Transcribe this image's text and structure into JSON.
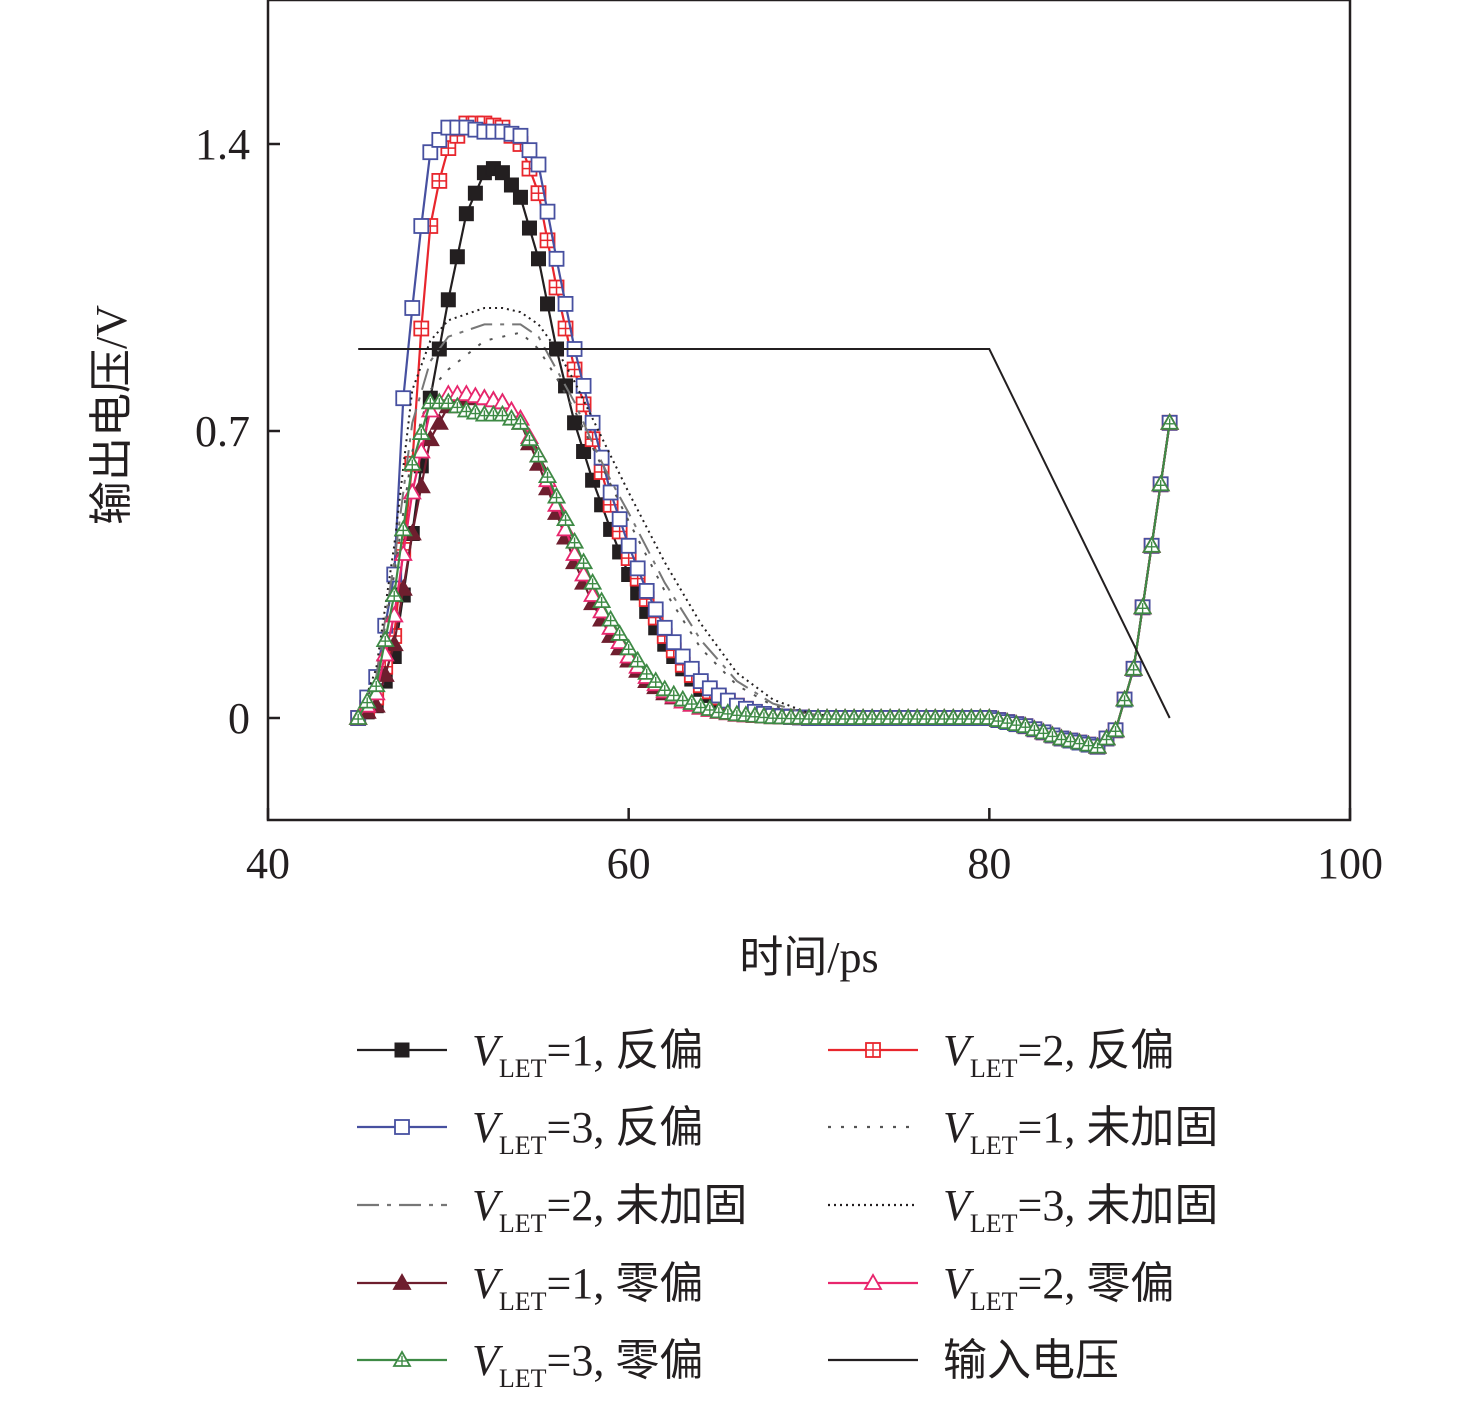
{
  "chart_data": {
    "type": "line",
    "xlabel": "时间/ps",
    "ylabel": "输出电压/V",
    "xlim": [
      40,
      100
    ],
    "ylim": [
      -0.25,
      1.75
    ],
    "xticks": [
      40,
      60,
      80,
      100
    ],
    "yticks": [
      0,
      0.7,
      1.4
    ],
    "xtick_labels": [
      "40",
      "60",
      "80",
      "100"
    ],
    "ytick_labels": [
      "0",
      "0.7",
      "1.4"
    ],
    "grid": false,
    "legend_position": "bottom",
    "series": [
      {
        "label_var": "V",
        "label_sub": "LET",
        "label_rest": "=1, 反偏",
        "color": "#231f20",
        "marker": "square-filled",
        "dash": "",
        "x": [
          45,
          46,
          47,
          48,
          49,
          50,
          51,
          52,
          52.5,
          53,
          54,
          55,
          56,
          57,
          58,
          59,
          60,
          61,
          62,
          63,
          64,
          65,
          66,
          67,
          68,
          70,
          75,
          80,
          82,
          84,
          86,
          87,
          88,
          89,
          90
        ],
        "y": [
          0,
          0.03,
          0.15,
          0.45,
          0.78,
          1.02,
          1.23,
          1.33,
          1.34,
          1.33,
          1.27,
          1.12,
          0.9,
          0.72,
          0.58,
          0.46,
          0.35,
          0.26,
          0.18,
          0.12,
          0.07,
          0.04,
          0.02,
          0.01,
          0.005,
          0,
          0,
          0,
          -0.02,
          -0.05,
          -0.07,
          -0.03,
          0.12,
          0.42,
          0.72
        ]
      },
      {
        "label_var": "V",
        "label_sub": "LET",
        "label_rest": "=2, 反偏",
        "color": "#e8262d",
        "marker": "square-cross",
        "dash": "",
        "x": [
          45,
          46,
          47,
          48,
          48.5,
          49,
          49.5,
          50,
          51,
          52,
          53,
          54,
          55,
          56,
          57,
          58,
          59,
          60,
          61,
          62,
          63,
          64,
          65,
          66,
          67,
          68,
          70,
          75,
          80,
          82,
          84,
          86,
          87,
          88,
          89,
          90
        ],
        "y": [
          0,
          0.05,
          0.2,
          0.62,
          0.95,
          1.2,
          1.31,
          1.39,
          1.45,
          1.45,
          1.44,
          1.4,
          1.28,
          1.05,
          0.85,
          0.68,
          0.52,
          0.39,
          0.29,
          0.2,
          0.13,
          0.08,
          0.05,
          0.03,
          0.015,
          0.005,
          0,
          0,
          0,
          -0.02,
          -0.05,
          -0.07,
          -0.03,
          0.12,
          0.42,
          0.72
        ]
      },
      {
        "label_var": "V",
        "label_sub": "LET",
        "label_rest": "=3, 反偏",
        "color": "#4750a0",
        "marker": "square-open",
        "dash": "",
        "x": [
          45,
          46,
          47,
          47.5,
          48,
          48.5,
          49,
          50,
          51,
          52,
          53,
          54,
          55,
          56,
          57,
          58,
          59,
          60,
          61,
          62,
          63,
          64,
          65,
          66,
          67,
          68,
          70,
          75,
          80,
          82,
          84,
          86,
          87,
          88,
          89,
          90
        ],
        "y": [
          0,
          0.1,
          0.35,
          0.78,
          1.0,
          1.2,
          1.38,
          1.44,
          1.44,
          1.43,
          1.43,
          1.42,
          1.35,
          1.12,
          0.9,
          0.72,
          0.55,
          0.42,
          0.31,
          0.22,
          0.15,
          0.09,
          0.055,
          0.03,
          0.015,
          0.005,
          0,
          0,
          0,
          -0.02,
          -0.05,
          -0.07,
          -0.03,
          0.12,
          0.42,
          0.72
        ]
      },
      {
        "label_var": "V",
        "label_sub": "LET",
        "label_rest": "=1, 未加固",
        "color": "#555555",
        "marker": "none",
        "dash": "3,10",
        "x": [
          45,
          46,
          47,
          48,
          49,
          50,
          52,
          54,
          55,
          56,
          57,
          58,
          59,
          60,
          62,
          64,
          66,
          68,
          70,
          72,
          75,
          80,
          82,
          84,
          86,
          87,
          88,
          89,
          90
        ],
        "y": [
          0,
          0.1,
          0.35,
          0.65,
          0.8,
          0.85,
          0.92,
          0.94,
          0.9,
          0.83,
          0.75,
          0.66,
          0.57,
          0.48,
          0.31,
          0.17,
          0.08,
          0.03,
          0.01,
          0,
          0,
          0,
          -0.02,
          -0.05,
          -0.07,
          -0.03,
          0.12,
          0.42,
          0.72
        ]
      },
      {
        "label_var": "V",
        "label_sub": "LET",
        "label_rest": "=2, 未加固",
        "color": "#777777",
        "marker": "none",
        "dash": "22,8,4,8",
        "x": [
          45,
          46,
          47,
          48,
          49,
          50,
          52,
          54,
          55,
          56,
          57,
          58,
          59,
          60,
          62,
          64,
          66,
          68,
          70,
          72,
          75,
          80,
          82,
          84,
          86,
          87,
          88,
          89,
          90
        ],
        "y": [
          0,
          0.1,
          0.38,
          0.72,
          0.87,
          0.93,
          0.96,
          0.96,
          0.93,
          0.85,
          0.77,
          0.67,
          0.58,
          0.5,
          0.33,
          0.19,
          0.09,
          0.035,
          0.01,
          0,
          0,
          0,
          -0.02,
          -0.05,
          -0.07,
          -0.03,
          0.12,
          0.42,
          0.72
        ]
      },
      {
        "label_var": "V",
        "label_sub": "LET",
        "label_rest": "=3, 未加固",
        "color": "#231f20",
        "marker": "none",
        "dash": "2,4",
        "x": [
          45,
          46,
          47,
          48,
          49,
          50,
          52,
          53,
          54,
          55,
          56,
          57,
          58,
          59,
          60,
          62,
          64,
          66,
          68,
          70,
          72,
          75,
          80,
          82,
          84,
          86,
          87,
          88,
          89,
          90
        ],
        "y": [
          0,
          0.12,
          0.42,
          0.8,
          0.92,
          0.97,
          1.0,
          1.0,
          0.99,
          0.96,
          0.9,
          0.82,
          0.73,
          0.64,
          0.55,
          0.38,
          0.23,
          0.11,
          0.045,
          0.012,
          0,
          0,
          0,
          -0.02,
          -0.05,
          -0.07,
          -0.03,
          0.12,
          0.42,
          0.72
        ]
      },
      {
        "label_var": "V",
        "label_sub": "LET",
        "label_rest": "=1, 零偏",
        "color": "#6e1e2e",
        "marker": "triangle-filled",
        "dash": "",
        "x": [
          45,
          46,
          47,
          48,
          49,
          50,
          51,
          52,
          53,
          54,
          55,
          56,
          57,
          58,
          59,
          60,
          61,
          62,
          63,
          64,
          65,
          66,
          68,
          70,
          75,
          80,
          82,
          84,
          86,
          87,
          88,
          89,
          90
        ],
        "y": [
          0,
          0.03,
          0.18,
          0.45,
          0.68,
          0.76,
          0.78,
          0.78,
          0.77,
          0.72,
          0.62,
          0.5,
          0.38,
          0.28,
          0.2,
          0.14,
          0.09,
          0.06,
          0.04,
          0.025,
          0.015,
          0.008,
          0.002,
          0,
          0,
          0,
          -0.02,
          -0.05,
          -0.07,
          -0.03,
          0.12,
          0.42,
          0.72
        ]
      },
      {
        "label_var": "V",
        "label_sub": "LET",
        "label_rest": "=2, 零偏",
        "color": "#e8266d",
        "marker": "triangle-open",
        "dash": "",
        "x": [
          45,
          46,
          47,
          48,
          49,
          50,
          51,
          52,
          53,
          54,
          55,
          56,
          57,
          58,
          59,
          60,
          61,
          62,
          63,
          64,
          65,
          66,
          68,
          70,
          75,
          80,
          82,
          84,
          86,
          87,
          88,
          89,
          90
        ],
        "y": [
          0,
          0.06,
          0.25,
          0.55,
          0.75,
          0.79,
          0.79,
          0.78,
          0.77,
          0.73,
          0.64,
          0.52,
          0.4,
          0.3,
          0.22,
          0.15,
          0.1,
          0.065,
          0.04,
          0.025,
          0.015,
          0.008,
          0.002,
          0,
          0,
          0,
          -0.02,
          -0.05,
          -0.07,
          -0.03,
          0.12,
          0.42,
          0.72
        ]
      },
      {
        "label_var": "V",
        "label_sub": "LET",
        "label_rest": "=3, 零偏",
        "color": "#3e8a45",
        "marker": "triangle-cross",
        "dash": "",
        "x": [
          45,
          46,
          47,
          48,
          49,
          50,
          51,
          52,
          53,
          54,
          55,
          56,
          57,
          58,
          59,
          60,
          61,
          62,
          63,
          64,
          65,
          66,
          68,
          70,
          75,
          80,
          82,
          84,
          86,
          87,
          88,
          89,
          90
        ],
        "y": [
          0,
          0.08,
          0.3,
          0.62,
          0.77,
          0.77,
          0.75,
          0.74,
          0.74,
          0.72,
          0.64,
          0.54,
          0.43,
          0.33,
          0.24,
          0.17,
          0.11,
          0.07,
          0.045,
          0.028,
          0.016,
          0.009,
          0.002,
          0,
          0,
          0,
          -0.02,
          -0.05,
          -0.07,
          -0.03,
          0.12,
          0.42,
          0.72
        ]
      },
      {
        "label_var": "",
        "label_sub": "",
        "label_rest": "输入电压",
        "color": "#231f20",
        "marker": "none",
        "dash": "",
        "x": [
          45,
          80,
          90
        ],
        "y": [
          0.9,
          0.9,
          0
        ]
      }
    ]
  }
}
